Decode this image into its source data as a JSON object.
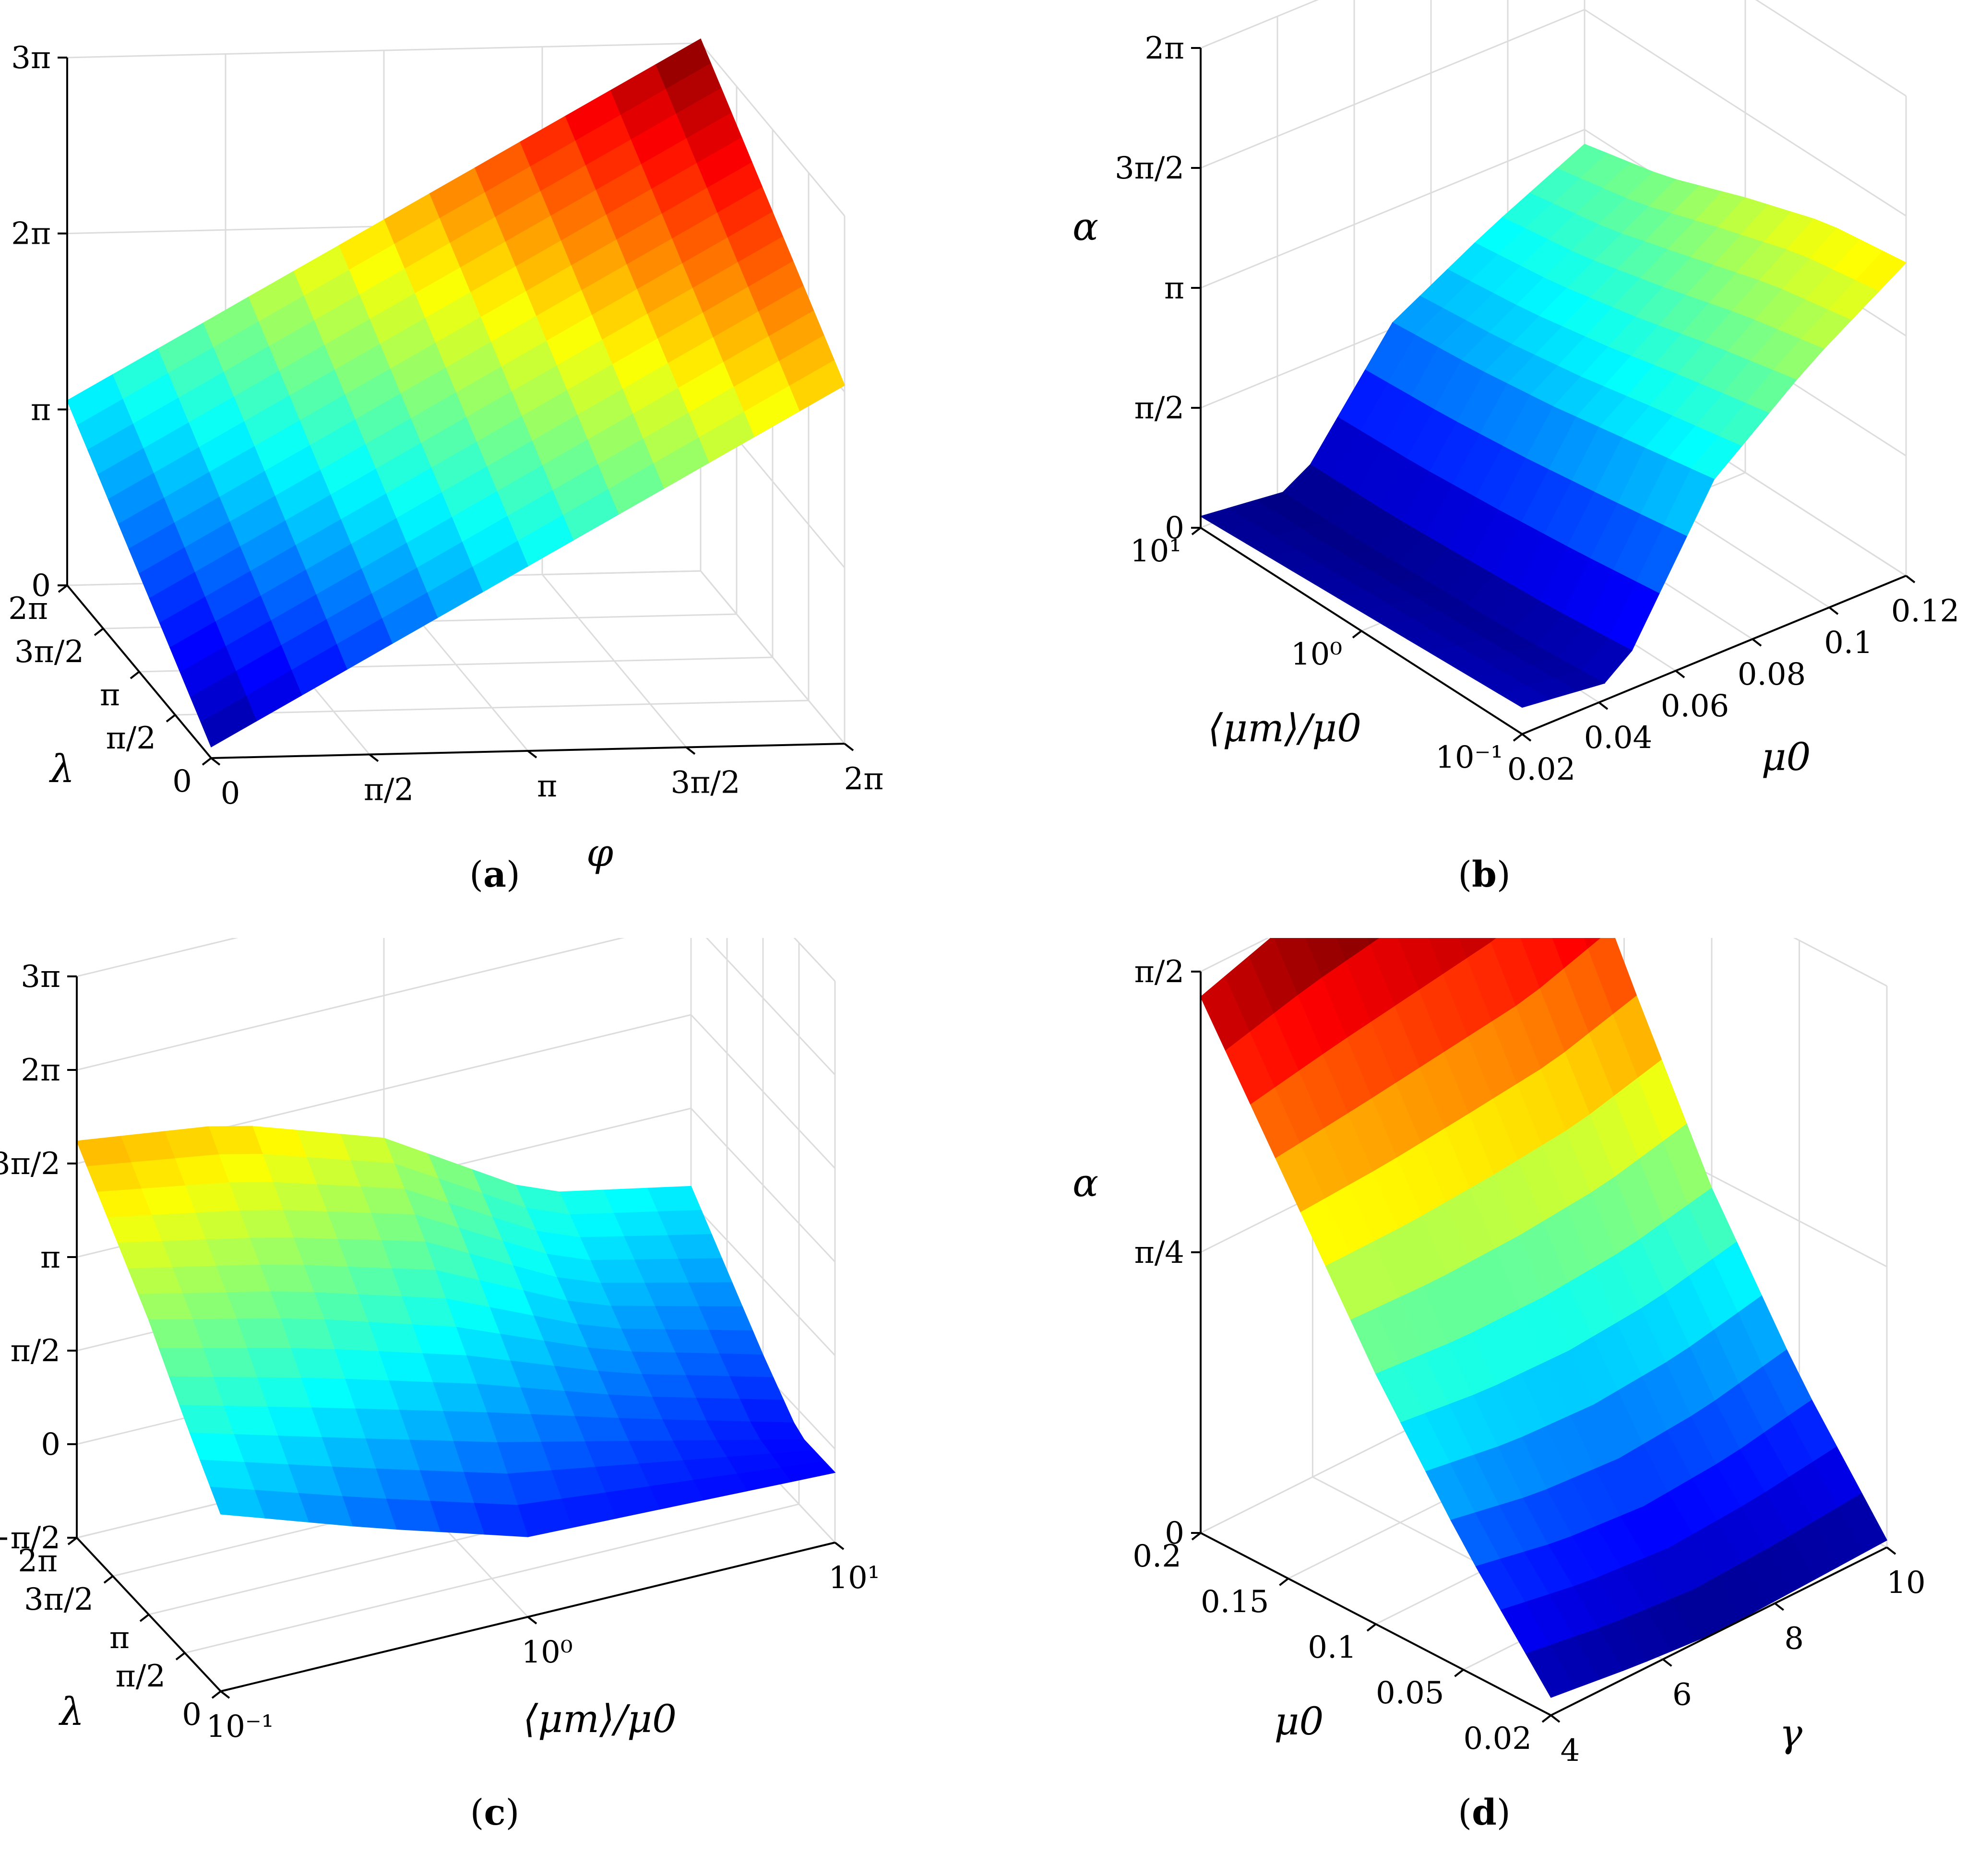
{
  "chart_data": [
    {
      "panel": "(a)",
      "type": "surface",
      "axes": {
        "x_label": "φ",
        "y_label": "λ",
        "z_label": "α"
      },
      "x_ticks": [
        "0",
        "π/2",
        "π",
        "3π/2",
        "2π"
      ],
      "y_ticks": [
        "0",
        "π/2",
        "π",
        "3π/2",
        "2π"
      ],
      "z_ticks": [
        "0",
        "π",
        "2π",
        "3π"
      ],
      "xlim": [
        0,
        6.2832
      ],
      "ylim": [
        0,
        6.2832
      ],
      "zlim": [
        0,
        9.4248
      ],
      "x": [
        0,
        1.5708,
        3.1416,
        4.7124,
        6.2832
      ],
      "y": [
        0,
        1.5708,
        3.1416,
        4.7124,
        6.2832
      ],
      "z": [
        [
          0.2,
          1.75,
          3.3,
          4.85,
          6.4
        ],
        [
          0.98,
          2.53,
          4.08,
          5.63,
          7.18
        ],
        [
          1.75,
          3.3,
          4.85,
          6.4,
          7.95
        ],
        [
          2.53,
          4.08,
          5.63,
          7.18,
          8.73
        ],
        [
          3.3,
          4.85,
          6.4,
          7.95,
          9.5
        ]
      ],
      "colormap": "jet"
    },
    {
      "panel": "(b)",
      "type": "surface",
      "axes": {
        "x_label": "μ0",
        "y_label": "⟨μm⟩/μ0",
        "z_label": "α"
      },
      "x_ticks": [
        "0.02",
        "0.04",
        "0.06",
        "0.08",
        "0.1",
        "0.12"
      ],
      "y_ticks": [
        "10⁻¹",
        "10⁰",
        "10¹"
      ],
      "z_ticks": [
        "0",
        "π/2",
        "π",
        "3π/2",
        "2π"
      ],
      "xlim": [
        0.01,
        0.12
      ],
      "ylim": [
        0.1,
        10
      ],
      "y_scale": "log",
      "zlim": [
        0,
        6.2832
      ],
      "x": [
        0.01,
        0.0375,
        0.065,
        0.0925,
        0.12
      ],
      "y": [
        10,
        3.16,
        1.0,
        0.316,
        0.1
      ],
      "z": [
        [
          0.15,
          0.0,
          1.65,
          2.35,
          2.95
        ],
        [
          0.2,
          0.0,
          1.75,
          2.5,
          3.2
        ],
        [
          0.25,
          0.05,
          1.9,
          2.75,
          3.6
        ],
        [
          0.3,
          0.1,
          2.1,
          3.05,
          3.95
        ],
        [
          0.35,
          0.2,
          2.3,
          3.3,
          4.1
        ]
      ],
      "colormap": "jet"
    },
    {
      "panel": "(c)",
      "type": "surface",
      "axes": {
        "x_label": "⟨μm⟩/μ0",
        "y_label": "λ",
        "z_label": "α"
      },
      "x_ticks": [
        "10⁻¹",
        "10⁰",
        "10¹"
      ],
      "y_ticks": [
        "0",
        "π/2",
        "π",
        "3π/2",
        "2π"
      ],
      "z_ticks": [
        "−π/2",
        "0",
        "π/2",
        "π",
        "3π/2",
        "2π",
        "3π"
      ],
      "xlim": [
        0.1,
        10
      ],
      "x_scale": "log",
      "ylim": [
        0,
        6.2832
      ],
      "zlim": [
        -1.5708,
        9.4248
      ],
      "x": [
        0.1,
        0.316,
        1.0,
        3.16,
        10
      ],
      "y": [
        0,
        1.5708,
        3.1416,
        4.7124,
        6.2832
      ],
      "z": [
        [
          1.9,
          0.9,
          0.0,
          -0.1,
          -0.2
        ],
        [
          3.0,
          2.2,
          1.4,
          0.6,
          -0.2
        ],
        [
          4.2,
          3.5,
          2.6,
          1.4,
          0.6
        ],
        [
          5.2,
          4.6,
          3.8,
          2.2,
          1.5
        ],
        [
          6.2,
          5.8,
          4.8,
          3.0,
          2.4
        ]
      ],
      "colormap": "jet"
    },
    {
      "panel": "(d)",
      "type": "surface",
      "axes": {
        "x_label": "γ",
        "y_label": "μ0",
        "z_label": "α"
      },
      "x_ticks": [
        "4",
        "6",
        "8",
        "10"
      ],
      "y_ticks": [
        "0.02",
        "0.05",
        "0.1",
        "0.15",
        "0.2"
      ],
      "z_ticks": [
        "0",
        "π/4",
        "π/2"
      ],
      "xlim": [
        4,
        10
      ],
      "ylim": [
        0.02,
        0.2
      ],
      "zlim": [
        0,
        1.5708
      ],
      "x": [
        4,
        5.5,
        7,
        8.5,
        10
      ],
      "y": [
        0.02,
        0.065,
        0.11,
        0.155,
        0.2
      ],
      "z": [
        [
          0.05,
          0.02,
          0.0,
          0.01,
          0.02
        ],
        [
          0.35,
          0.3,
          0.28,
          0.3,
          0.35
        ],
        [
          0.7,
          0.68,
          0.68,
          0.7,
          0.75
        ],
        [
          1.1,
          1.12,
          1.15,
          1.18,
          1.25
        ],
        [
          1.5,
          1.58,
          1.63,
          1.68,
          1.8
        ]
      ],
      "colormap": "jet"
    }
  ],
  "captions": {
    "a": "a",
    "b": "b",
    "c": "c",
    "d": "d"
  }
}
